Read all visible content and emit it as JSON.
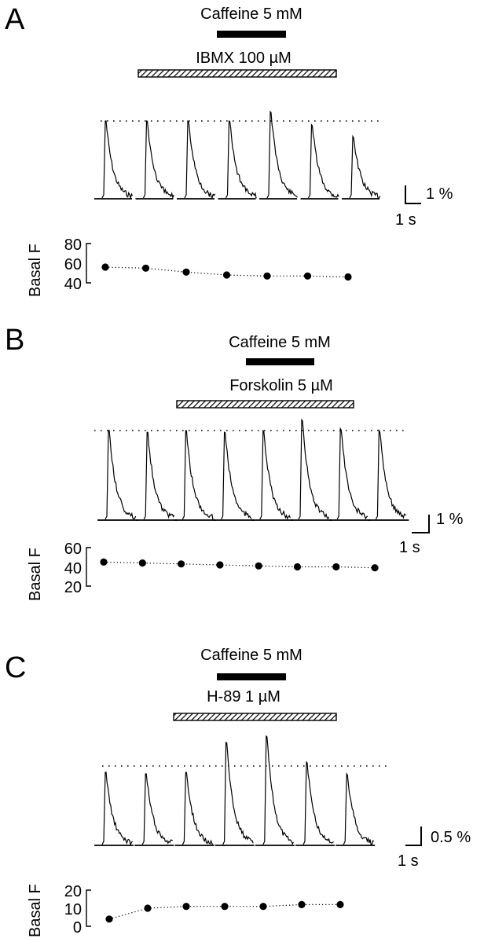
{
  "panels": [
    {
      "letter": "A",
      "caffeine_label": "Caffeine 5 mM",
      "drug_label": "IBMX 100 µM",
      "scale_y_label": "1 %",
      "scale_x_label": "1 s",
      "basal_label": "Basal F",
      "basal_ticks": [
        "80",
        "60",
        "40"
      ],
      "basal_range": [
        40,
        80
      ],
      "basal_values": [
        56,
        55,
        51,
        48,
        47,
        47,
        46
      ],
      "transient_peaks": [
        1.0,
        1.0,
        1.0,
        1.0,
        1.12,
        0.95,
        0.8
      ]
    },
    {
      "letter": "B",
      "caffeine_label": "Caffeine 5 mM",
      "drug_label": "Forskolin 5 µM",
      "scale_y_label": "1 %",
      "scale_x_label": "1 s",
      "basal_label": "Basal F",
      "basal_ticks": [
        "60",
        "40",
        "20"
      ],
      "basal_range": [
        20,
        60
      ],
      "basal_values": [
        45,
        44,
        43,
        42,
        41,
        40,
        40,
        39
      ],
      "transient_peaks": [
        1.0,
        0.98,
        1.0,
        0.98,
        1.0,
        1.12,
        1.02,
        1.0
      ]
    },
    {
      "letter": "C",
      "caffeine_label": "Caffeine 5 mM",
      "drug_label": "H-89 1 µM",
      "scale_y_label": "0.5 %",
      "scale_x_label": "1 s",
      "basal_label": "Basal F",
      "basal_ticks": [
        "20",
        "10",
        "0"
      ],
      "basal_range": [
        0,
        20
      ],
      "basal_values": [
        4,
        10,
        11,
        11,
        11,
        12,
        12
      ],
      "transient_peaks": [
        0.92,
        0.9,
        0.92,
        1.3,
        1.38,
        1.05,
        0.9
      ]
    }
  ]
}
